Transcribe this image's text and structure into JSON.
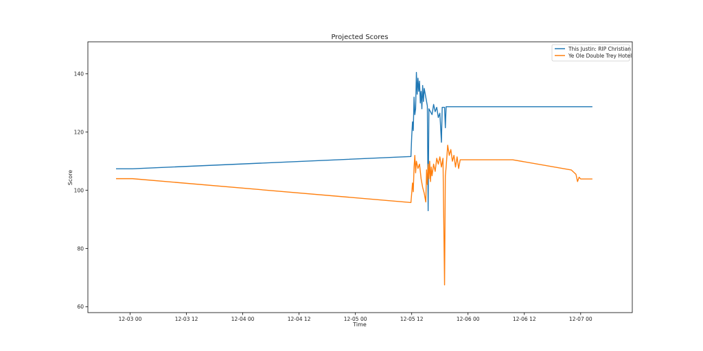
{
  "chart_data": {
    "type": "line",
    "title": "Projected Scores",
    "xlabel": "Time",
    "ylabel": "Score",
    "xlim": [
      "2024-12-02T15:00",
      "2024-12-07T11:00"
    ],
    "ylim": [
      58,
      151
    ],
    "x_ticks": [
      {
        "t": "2024-12-03T00:00",
        "label": "12-03 00"
      },
      {
        "t": "2024-12-03T12:00",
        "label": "12-03 12"
      },
      {
        "t": "2024-12-04T00:00",
        "label": "12-04 00"
      },
      {
        "t": "2024-12-04T12:00",
        "label": "12-04 12"
      },
      {
        "t": "2024-12-05T00:00",
        "label": "12-05 00"
      },
      {
        "t": "2024-12-05T12:00",
        "label": "12-05 12"
      },
      {
        "t": "2024-12-06T00:00",
        "label": "12-06 00"
      },
      {
        "t": "2024-12-06T12:00",
        "label": "12-06 12"
      },
      {
        "t": "2024-12-07T00:00",
        "label": "12-07 00"
      }
    ],
    "y_ticks": [
      60,
      80,
      100,
      120,
      140
    ],
    "grid": false,
    "legend_position": "top-right",
    "series": [
      {
        "name": "This Justin: RIP Christian",
        "color": "#1f77b4",
        "points": [
          [
            "2024-12-02T21:00",
            107.4
          ],
          [
            "2024-12-03T00:30",
            107.4
          ],
          [
            "2024-12-05T11:50",
            111.6
          ],
          [
            "2024-12-05T12:00",
            118.5
          ],
          [
            "2024-12-05T12:10",
            123.5
          ],
          [
            "2024-12-05T12:20",
            120.5
          ],
          [
            "2024-12-05T12:30",
            132.0
          ],
          [
            "2024-12-05T12:40",
            126.0
          ],
          [
            "2024-12-05T12:50",
            128.0
          ],
          [
            "2024-12-05T13:00",
            140.5
          ],
          [
            "2024-12-05T13:10",
            133.0
          ],
          [
            "2024-12-05T13:20",
            138.5
          ],
          [
            "2024-12-05T13:30",
            134.0
          ],
          [
            "2024-12-05T13:40",
            137.5
          ],
          [
            "2024-12-05T13:50",
            130.0
          ],
          [
            "2024-12-05T14:00",
            134.0
          ],
          [
            "2024-12-05T14:10",
            128.0
          ],
          [
            "2024-12-05T14:20",
            136.0
          ],
          [
            "2024-12-05T14:30",
            130.5
          ],
          [
            "2024-12-05T14:40",
            135.0
          ],
          [
            "2024-12-05T15:00",
            132.0
          ],
          [
            "2024-12-05T15:20",
            129.0
          ],
          [
            "2024-12-05T15:30",
            93.0
          ],
          [
            "2024-12-05T15:40",
            128.0
          ],
          [
            "2024-12-05T16:00",
            127.0
          ],
          [
            "2024-12-05T16:20",
            126.0
          ],
          [
            "2024-12-05T16:40",
            129.5
          ],
          [
            "2024-12-05T17:00",
            127.0
          ],
          [
            "2024-12-05T17:20",
            128.5
          ],
          [
            "2024-12-05T17:40",
            125.0
          ],
          [
            "2024-12-05T18:00",
            126.5
          ],
          [
            "2024-12-05T18:20",
            116.5
          ],
          [
            "2024-12-05T18:30",
            128.5
          ],
          [
            "2024-12-05T19:00",
            128.5
          ],
          [
            "2024-12-05T19:10",
            121.5
          ],
          [
            "2024-12-05T19:20",
            128.7
          ],
          [
            "2024-12-07T02:30",
            128.7
          ]
        ]
      },
      {
        "name": "Ye Ole Double Trey Hotel",
        "color": "#ff7f0e",
        "points": [
          [
            "2024-12-02T21:00",
            104.0
          ],
          [
            "2024-12-03T00:30",
            104.0
          ],
          [
            "2024-12-05T11:50",
            95.8
          ],
          [
            "2024-12-05T12:00",
            99.0
          ],
          [
            "2024-12-05T12:10",
            102.5
          ],
          [
            "2024-12-05T12:20",
            99.5
          ],
          [
            "2024-12-05T12:30",
            108.0
          ],
          [
            "2024-12-05T12:40",
            112.0
          ],
          [
            "2024-12-05T12:50",
            106.0
          ],
          [
            "2024-12-05T13:00",
            110.0
          ],
          [
            "2024-12-05T13:20",
            107.5
          ],
          [
            "2024-12-05T13:40",
            109.0
          ],
          [
            "2024-12-05T14:00",
            104.0
          ],
          [
            "2024-12-05T14:20",
            101.0
          ],
          [
            "2024-12-05T14:40",
            99.0
          ],
          [
            "2024-12-05T15:00",
            96.0
          ],
          [
            "2024-12-05T15:10",
            107.0
          ],
          [
            "2024-12-05T15:20",
            102.0
          ],
          [
            "2024-12-05T15:30",
            109.0
          ],
          [
            "2024-12-05T15:40",
            104.0
          ],
          [
            "2024-12-05T15:50",
            110.0
          ],
          [
            "2024-12-05T16:00",
            103.0
          ],
          [
            "2024-12-05T16:10",
            108.0
          ],
          [
            "2024-12-05T16:20",
            105.0
          ],
          [
            "2024-12-05T16:40",
            109.0
          ],
          [
            "2024-12-05T17:00",
            106.5
          ],
          [
            "2024-12-05T17:20",
            111.0
          ],
          [
            "2024-12-05T17:40",
            109.0
          ],
          [
            "2024-12-05T18:00",
            111.5
          ],
          [
            "2024-12-05T18:20",
            108.0
          ],
          [
            "2024-12-05T18:40",
            111.0
          ],
          [
            "2024-12-05T19:00",
            67.5
          ],
          [
            "2024-12-05T19:10",
            105.0
          ],
          [
            "2024-12-05T19:20",
            108.0
          ],
          [
            "2024-12-05T19:40",
            115.5
          ],
          [
            "2024-12-05T20:00",
            112.0
          ],
          [
            "2024-12-05T20:20",
            114.0
          ],
          [
            "2024-12-05T20:40",
            110.0
          ],
          [
            "2024-12-05T21:00",
            112.0
          ],
          [
            "2024-12-05T21:20",
            108.0
          ],
          [
            "2024-12-05T21:40",
            111.5
          ],
          [
            "2024-12-05T22:00",
            107.5
          ],
          [
            "2024-12-05T22:20",
            110.5
          ],
          [
            "2024-12-05T23:00",
            110.5
          ],
          [
            "2024-12-06T09:30",
            110.5
          ],
          [
            "2024-12-06T22:00",
            107.0
          ],
          [
            "2024-12-06T23:00",
            105.5
          ],
          [
            "2024-12-06T23:20",
            103.0
          ],
          [
            "2024-12-06T23:40",
            104.5
          ],
          [
            "2024-12-07T00:00",
            103.9
          ],
          [
            "2024-12-07T02:30",
            103.9
          ]
        ]
      }
    ]
  }
}
